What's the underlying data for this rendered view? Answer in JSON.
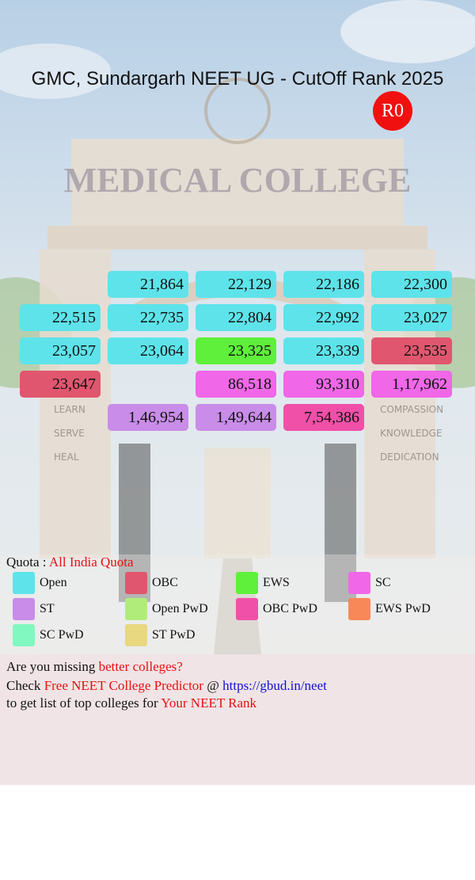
{
  "header": {
    "title": "GMC, Sundargarh NEET UG - CutOff Rank 2025",
    "badge": "R0"
  },
  "background": {
    "sign": "MEDICAL COLLEGE",
    "left_words": [
      "LEARN",
      "SERVE",
      "HEAL"
    ],
    "right_words": [
      "COMPASSION",
      "KNOWLEDGE",
      "DEDICATION"
    ]
  },
  "table": {
    "rows": [
      [
        null,
        {
          "text": "21,864",
          "color": "#5ee3ea"
        },
        {
          "text": "22,129",
          "color": "#5ee3ea"
        },
        {
          "text": "22,186",
          "color": "#5ee3ea"
        },
        {
          "text": "22,300",
          "color": "#5ee3ea"
        }
      ],
      [
        {
          "text": "22,515",
          "color": "#5ee3ea"
        },
        {
          "text": "22,735",
          "color": "#5ee3ea"
        },
        {
          "text": "22,804",
          "color": "#5ee3ea"
        },
        {
          "text": "22,992",
          "color": "#5ee3ea"
        },
        {
          "text": "23,027",
          "color": "#5ee3ea"
        }
      ],
      [
        {
          "text": "23,057",
          "color": "#5ee3ea"
        },
        {
          "text": "23,064",
          "color": "#5ee3ea"
        },
        {
          "text": "23,325",
          "color": "#5ef03a"
        },
        {
          "text": "23,339",
          "color": "#5ee3ea"
        },
        {
          "text": "23,535",
          "color": "#e0566e"
        }
      ],
      [
        {
          "text": "23,647",
          "color": "#e0566e"
        },
        null,
        {
          "text": "86,518",
          "color": "#f067e8"
        },
        {
          "text": "93,310",
          "color": "#f067e8"
        },
        {
          "text": "1,17,962",
          "color": "#f067e8"
        }
      ],
      [
        null,
        {
          "text": "1,46,954",
          "color": "#c98ce8"
        },
        {
          "text": "1,49,644",
          "color": "#c98ce8"
        },
        {
          "text": "7,54,386",
          "color": "#f050a8"
        },
        null
      ]
    ]
  },
  "quota": {
    "label": "Quota :",
    "value": "All India Quota"
  },
  "legend": [
    {
      "name": "Open",
      "color": "#5ee3ea"
    },
    {
      "name": "OBC",
      "color": "#e0566e"
    },
    {
      "name": "EWS",
      "color": "#5ef03a"
    },
    {
      "name": "SC",
      "color": "#f067e8"
    },
    {
      "name": "ST",
      "color": "#c98ce8"
    },
    {
      "name": "Open PwD",
      "color": "#b0ec7a"
    },
    {
      "name": "OBC PwD",
      "color": "#f050a8"
    },
    {
      "name": "EWS PwD",
      "color": "#f88858"
    },
    {
      "name": "SC PwD",
      "color": "#80f8c0"
    },
    {
      "name": "ST PwD",
      "color": "#e8d880"
    }
  ],
  "footer": {
    "line1": [
      "Are you missing ",
      "better colleges?"
    ],
    "line2": [
      "Check ",
      "Free NEET College Predictor",
      " @ ",
      "https://gbud.in/neet"
    ],
    "line3": [
      "to get list of top colleges for ",
      "Your NEET Rank"
    ]
  }
}
